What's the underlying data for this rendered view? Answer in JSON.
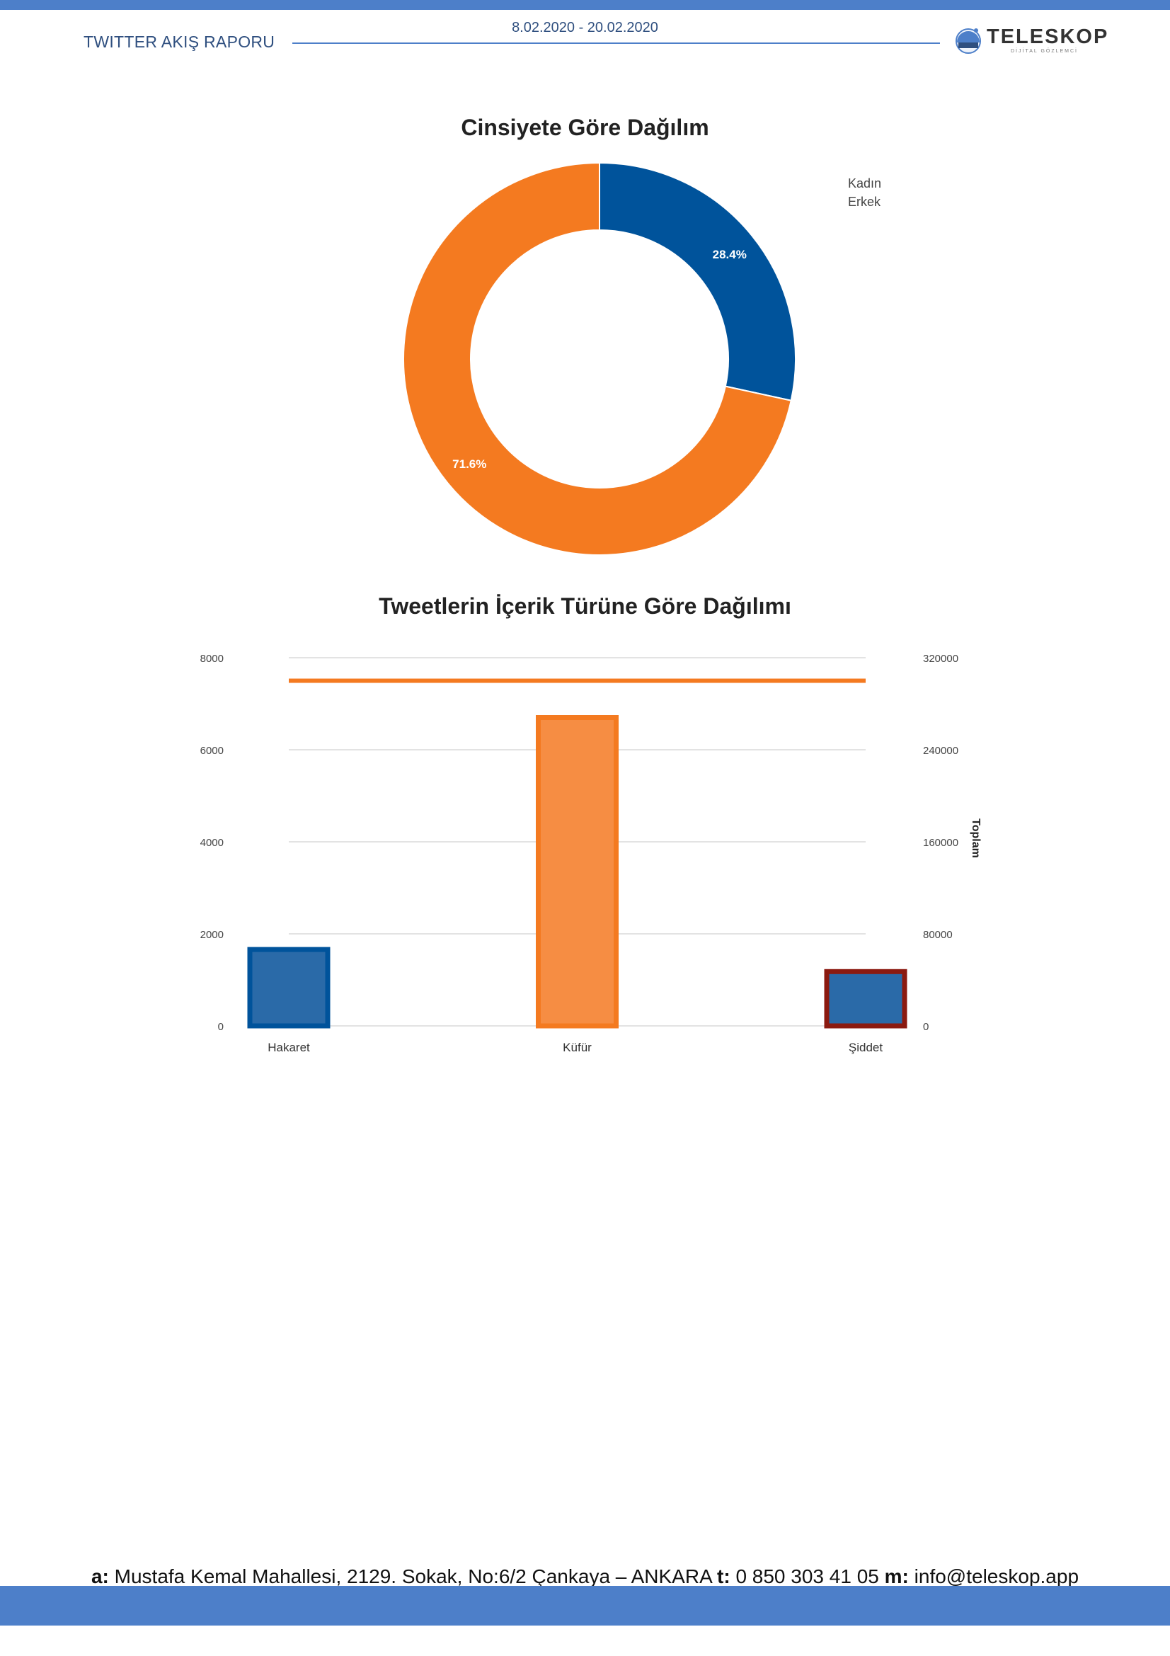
{
  "header": {
    "report_title": "TWITTER AKIŞ RAPORU",
    "date_range": "8.02.2020 - 20.02.2020",
    "logo_name": "TELESKOP",
    "logo_tagline": "DİJİTAL GÖZLEMCİ",
    "accent_color": "#4d7fc9"
  },
  "chart_data": [
    {
      "type": "pie",
      "variant": "donut",
      "title": "Cinsiyete Göre Dağılım",
      "legend_position": "top-right",
      "slices": [
        {
          "name": "Kadın",
          "value": 28.4,
          "label": "28.4%",
          "color": "#00539b"
        },
        {
          "name": "Erkek",
          "value": 71.6,
          "label": "71.6%",
          "color": "#f47a20"
        }
      ]
    },
    {
      "type": "bar",
      "title": "Tweetlerin İçerik Türüne Göre Dağılımı",
      "categories": [
        "Hakaret",
        "Küfür",
        "Şiddet"
      ],
      "values": [
        1660,
        6700,
        1180
      ],
      "bar_fill_colors": [
        "#2a6aa8",
        "#f68d43",
        "#2a6aa8"
      ],
      "bar_border_colors": [
        "#00539b",
        "#f47a20",
        "#8b1a10"
      ],
      "ylim": [
        0,
        8000
      ],
      "yticks": [
        "0",
        "2000",
        "4000",
        "6000",
        "8000"
      ],
      "y2lim": [
        0,
        320000
      ],
      "y2ticks": [
        "0",
        "80000",
        "160000",
        "240000",
        "320000"
      ],
      "y2label": "Toplam",
      "total_line": {
        "value": 300000,
        "color": "#f47a20"
      },
      "grid": true
    }
  ],
  "footer": {
    "address_key": "a:",
    "address": "Mustafa Kemal Mahallesi, 2129. Sokak, No:6/2 Çankaya – ANKARA",
    "phone_key": "t:",
    "phone": "0 850 303 41 05",
    "mail_key": "m:",
    "mail": "info@teleskop.app"
  }
}
